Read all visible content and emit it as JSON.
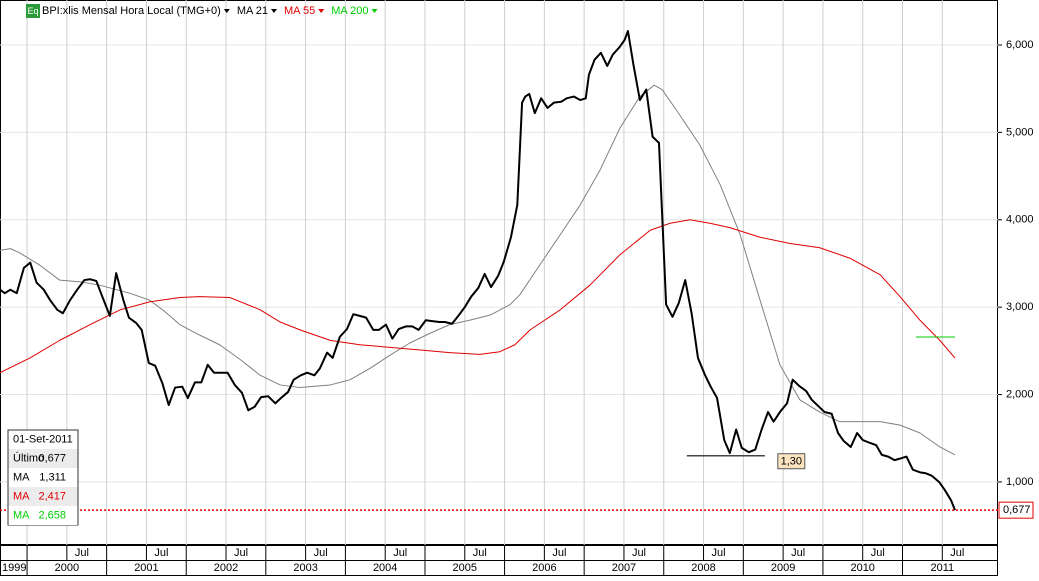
{
  "chart_data": {
    "type": "line",
    "icon": "Eq",
    "title": "BPI:xlis Mensal Hora Local (TMG+0)",
    "xlim": [
      1999.66,
      2012.2
    ],
    "ylim": [
      0.2785,
      6.5148
    ],
    "yticks": [
      {
        "value": 1,
        "label": "1,000"
      },
      {
        "value": 2,
        "label": "2,000"
      },
      {
        "value": 3,
        "label": "3,000"
      },
      {
        "value": 4,
        "label": "4,000"
      },
      {
        "value": 5,
        "label": "5,000"
      },
      {
        "value": 6,
        "label": "6,000"
      }
    ],
    "xticks": [
      1999,
      {
        "value": 2000.5,
        "label": "Jul"
      },
      2000,
      2001,
      {
        "value": 2001.5,
        "label": "Jul"
      },
      2002,
      {
        "value": 2002.5,
        "label": "Jul"
      },
      2003,
      {
        "value": 2003.5,
        "label": "Jul"
      },
      2004,
      {
        "value": 2004.5,
        "label": "Jul"
      },
      2005,
      {
        "value": 2005.5,
        "label": "Jul"
      },
      2006,
      {
        "value": 2006.5,
        "label": "Jul"
      },
      2007,
      {
        "value": 2007.5,
        "label": "Jul"
      },
      2008,
      {
        "value": 2008.5,
        "label": "Jul"
      },
      2009,
      {
        "value": 2009.5,
        "label": "Jul"
      },
      2010,
      {
        "value": 2010.5,
        "label": "Jul"
      },
      2011,
      {
        "value": 2011.5,
        "label": "Jul"
      }
    ],
    "grid": true,
    "series": [
      {
        "name": "BPI:xlis Mensal Hora Local (TMG+0)",
        "color": "#000000",
        "x": [
          1999.66,
          1999.72,
          1999.79,
          1999.87,
          1999.96,
          2000.04,
          2000.12,
          2000.21,
          2000.29,
          2000.38,
          2000.45,
          2000.54,
          2000.63,
          2000.72,
          2000.79,
          2000.87,
          2000.95,
          2001.04,
          2001.12,
          2001.21,
          2001.28,
          2001.37,
          2001.44,
          2001.53,
          2001.61,
          2001.7,
          2001.78,
          2001.86,
          2001.95,
          2002.02,
          2002.11,
          2002.19,
          2002.27,
          2002.35,
          2002.44,
          2002.52,
          2002.61,
          2002.7,
          2002.78,
          2002.86,
          2002.94,
          2003.03,
          2003.12,
          2003.19,
          2003.28,
          2003.35,
          2003.44,
          2003.52,
          2003.61,
          2003.68,
          2003.77,
          2003.84,
          2003.93,
          2004.02,
          2004.1,
          2004.18,
          2004.26,
          2004.35,
          2004.42,
          2004.51,
          2004.59,
          2004.67,
          2004.76,
          2004.84,
          2004.92,
          2005.01,
          2005.09,
          2005.18,
          2005.25,
          2005.34,
          2005.41,
          2005.5,
          2005.58,
          2005.67,
          2005.75,
          2005.83,
          2005.92,
          2005.99,
          2006.08,
          2006.16,
          2006.22,
          2006.26,
          2006.31,
          2006.38,
          2006.46,
          2006.54,
          2006.62,
          2006.71,
          2006.78,
          2006.87,
          2006.95,
          2007.02,
          2007.06,
          2007.13,
          2007.21,
          2007.29,
          2007.36,
          2007.44,
          2007.51,
          2007.55,
          2007.62,
          2007.7,
          2007.78,
          2007.86,
          2007.94,
          2008.03,
          2008.11,
          2008.19,
          2008.27,
          2008.35,
          2008.43,
          2008.52,
          2008.59,
          2008.67,
          2008.76,
          2008.83,
          2008.91,
          2008.98,
          2009.07,
          2009.15,
          2009.23,
          2009.31,
          2009.38,
          2009.46,
          2009.55,
          2009.62,
          2009.7,
          2009.79,
          2009.86,
          2009.94,
          2010.02,
          2010.11,
          2010.19,
          2010.26,
          2010.35,
          2010.43,
          2010.5,
          2010.58,
          2010.67,
          2010.74,
          2010.82,
          2010.9,
          2010.98,
          2011.05,
          2011.13,
          2011.22,
          2011.29,
          2011.37,
          2011.46,
          2011.53,
          2011.61,
          2011.66
        ],
        "values": [
          3.2,
          3.16,
          3.2,
          3.16,
          3.45,
          3.51,
          3.28,
          3.2,
          3.08,
          2.97,
          2.93,
          3.08,
          3.2,
          3.31,
          3.32,
          3.3,
          3.11,
          2.9,
          3.39,
          3.08,
          2.88,
          2.82,
          2.74,
          2.36,
          2.33,
          2.13,
          1.88,
          2.08,
          2.09,
          1.96,
          2.14,
          2.14,
          2.34,
          2.25,
          2.25,
          2.25,
          2.11,
          2.02,
          1.82,
          1.86,
          1.97,
          1.98,
          1.9,
          1.96,
          2.03,
          2.17,
          2.22,
          2.25,
          2.22,
          2.3,
          2.48,
          2.42,
          2.66,
          2.75,
          2.92,
          2.9,
          2.88,
          2.74,
          2.74,
          2.8,
          2.64,
          2.75,
          2.78,
          2.78,
          2.74,
          2.85,
          2.84,
          2.83,
          2.83,
          2.81,
          2.89,
          3.0,
          3.12,
          3.22,
          3.38,
          3.23,
          3.36,
          3.52,
          3.8,
          4.17,
          5.34,
          5.41,
          5.44,
          5.22,
          5.39,
          5.28,
          5.34,
          5.35,
          5.39,
          5.41,
          5.37,
          5.39,
          5.66,
          5.83,
          5.91,
          5.76,
          5.89,
          5.97,
          6.06,
          6.16,
          5.77,
          5.37,
          5.49,
          4.95,
          4.88,
          3.03,
          2.89,
          3.05,
          3.31,
          2.93,
          2.42,
          2.22,
          2.09,
          1.96,
          1.48,
          1.33,
          1.6,
          1.39,
          1.34,
          1.37,
          1.6,
          1.8,
          1.69,
          1.8,
          1.9,
          2.17,
          2.1,
          2.04,
          1.94,
          1.87,
          1.8,
          1.78,
          1.56,
          1.47,
          1.4,
          1.56,
          1.48,
          1.45,
          1.42,
          1.31,
          1.29,
          1.25,
          1.27,
          1.29,
          1.14,
          1.11,
          1.1,
          1.07,
          1.0,
          0.91,
          0.79,
          0.677
        ]
      },
      {
        "name": "MA 21",
        "color": "#808080",
        "x": [
          1999.66,
          1999.79,
          1999.91,
          2000.16,
          2000.41,
          2000.67,
          2000.92,
          2001.29,
          2001.54,
          2001.73,
          2001.92,
          2002.17,
          2002.42,
          2002.68,
          2002.93,
          2003.18,
          2003.43,
          2003.81,
          2004.06,
          2004.31,
          2004.56,
          2004.81,
          2005.06,
          2005.31,
          2005.56,
          2005.82,
          2006.07,
          2006.19,
          2006.44,
          2006.7,
          2006.95,
          2007.2,
          2007.45,
          2007.7,
          2007.88,
          2007.98,
          2008.2,
          2008.45,
          2008.71,
          2008.96,
          2009.21,
          2009.46,
          2009.71,
          2009.96,
          2010.21,
          2010.46,
          2010.72,
          2010.97,
          2011.22,
          2011.47,
          2011.66
        ],
        "values": [
          3.65,
          3.67,
          3.62,
          3.48,
          3.31,
          3.29,
          3.25,
          3.16,
          3.08,
          2.95,
          2.8,
          2.68,
          2.57,
          2.4,
          2.22,
          2.11,
          2.08,
          2.11,
          2.17,
          2.3,
          2.45,
          2.59,
          2.7,
          2.8,
          2.85,
          2.91,
          3.03,
          3.14,
          3.48,
          3.83,
          4.17,
          4.57,
          5.05,
          5.41,
          5.54,
          5.49,
          5.2,
          4.86,
          4.4,
          3.83,
          3.08,
          2.34,
          1.94,
          1.8,
          1.69,
          1.69,
          1.69,
          1.65,
          1.56,
          1.4,
          1.311
        ]
      },
      {
        "name": "MA 55",
        "color": "#e00000",
        "x": [
          1999.66,
          2000.04,
          2000.41,
          2000.79,
          2001.17,
          2001.54,
          2001.92,
          2002.17,
          2002.55,
          2002.93,
          2003.18,
          2003.43,
          2003.81,
          2004.18,
          2004.56,
          2004.94,
          2005.31,
          2005.69,
          2005.94,
          2006.13,
          2006.32,
          2006.7,
          2007.07,
          2007.45,
          2007.83,
          2008.08,
          2008.33,
          2008.58,
          2008.83,
          2009.21,
          2009.58,
          2009.96,
          2010.34,
          2010.72,
          2010.97,
          2011.22,
          2011.47,
          2011.66
        ],
        "values": [
          2.25,
          2.42,
          2.62,
          2.8,
          2.97,
          3.06,
          3.11,
          3.12,
          3.11,
          2.97,
          2.83,
          2.74,
          2.62,
          2.57,
          2.54,
          2.51,
          2.48,
          2.46,
          2.49,
          2.57,
          2.74,
          2.97,
          3.25,
          3.6,
          3.88,
          3.96,
          4.0,
          3.96,
          3.91,
          3.8,
          3.73,
          3.68,
          3.56,
          3.37,
          3.12,
          2.85,
          2.62,
          2.417
        ]
      },
      {
        "name": "MA 200",
        "color": "#00cc00",
        "x": [
          2011.17,
          2011.66
        ],
        "values": [
          2.658,
          2.658
        ]
      }
    ],
    "last_value": {
      "value": 0.677,
      "label": "0,677",
      "color": "#e00000"
    },
    "annotation": {
      "label": "1,30",
      "value": 1.3,
      "x": [
        2008.29,
        2009.27
      ]
    },
    "info_box": {
      "date": "01-Set-2011",
      "rows": [
        {
          "label": "Último",
          "value": "0,677"
        },
        {
          "label": "MA",
          "value": "1,311"
        },
        {
          "label": "MA",
          "value": "2,417"
        },
        {
          "label": "MA",
          "value": "2,658"
        }
      ]
    }
  }
}
